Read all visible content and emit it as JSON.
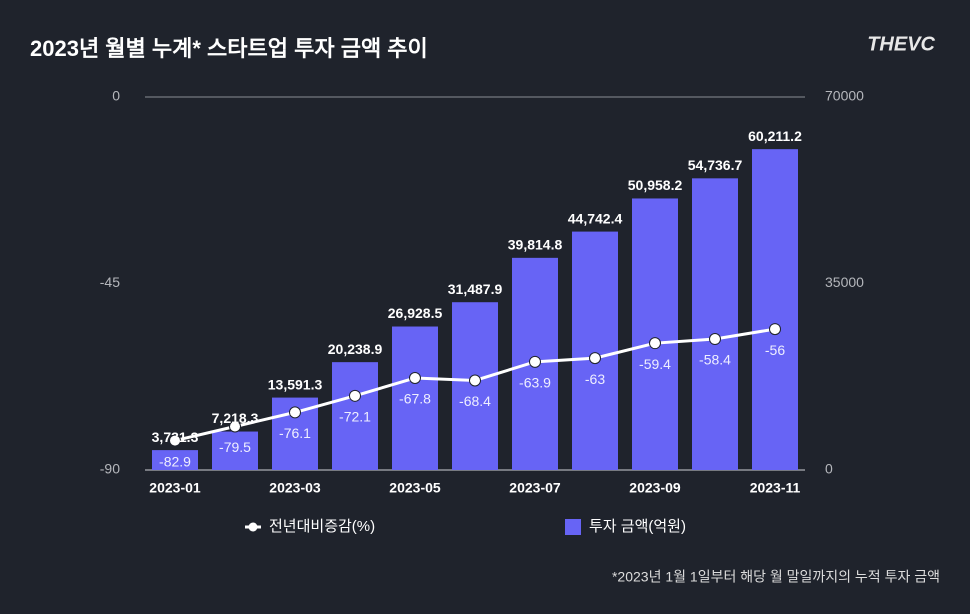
{
  "chart_data": {
    "type": "bar-line",
    "title": "2023년 월별 누계* 스타트업 투자 금액 추이",
    "logo": "THEVC",
    "footnote": "*2023년 1월 1일부터 해당 월 말일까지의 누적 투자 금액",
    "categories": [
      "2023-01",
      null,
      "2023-03",
      null,
      "2023-05",
      null,
      "2023-07",
      null,
      "2023-09",
      null,
      "2023-11"
    ],
    "ylim": [
      -90,
      0
    ],
    "yticks": [
      -90,
      -45,
      0
    ],
    "y2lim": [
      0,
      70000
    ],
    "y2ticks": [
      0,
      35000,
      70000
    ],
    "series": [
      {
        "name": "전년대비증감(%)",
        "type": "line",
        "color": "#ffffff",
        "values": [
          -82.9,
          -79.5,
          -76.1,
          -72.1,
          -67.8,
          -68.4,
          -63.9,
          -63,
          -59.4,
          -58.4,
          -56
        ]
      },
      {
        "name": "투자 금액(억원)",
        "type": "bar",
        "axis": "y2",
        "color": "#6764f5",
        "values": [
          3731.3,
          7218.3,
          13591.3,
          20238.9,
          26928.5,
          31487.9,
          39814.8,
          44742.4,
          50958.2,
          54736.7,
          60211.2
        ],
        "value_labels": [
          "3,731.3",
          "7,218.3",
          "13,591.3",
          "20,238.9",
          "26,928.5",
          "31,487.9",
          "39,814.8",
          "44,742.4",
          "50,958.2",
          "54,736.7",
          "60,211.2"
        ]
      }
    ]
  }
}
